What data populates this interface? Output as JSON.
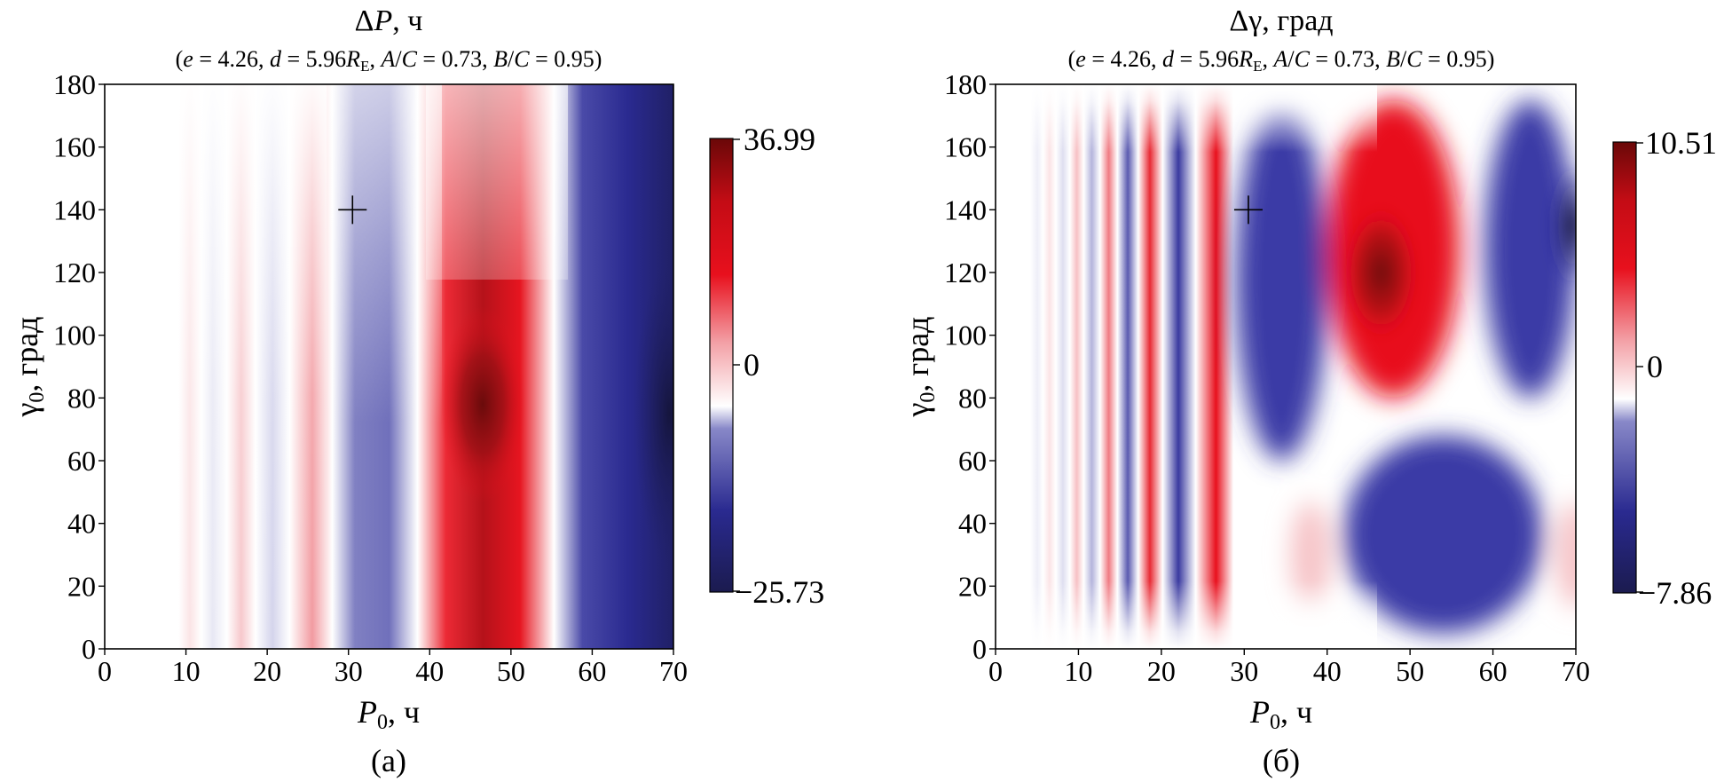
{
  "figure": {
    "panels_caption_a": "(а)",
    "panels_caption_b": "(б)"
  },
  "chart_data": [
    {
      "type": "heatmap",
      "panel": "(а)",
      "title": "ΔP, ч",
      "subtitle": "(e = 4.26, d = 5.96R_E, A/C = 0.73, B/C = 0.95)",
      "xlabel": "P0, ч",
      "ylabel": "γ0, град",
      "xlim": [
        0,
        70
      ],
      "ylim": [
        0,
        180
      ],
      "xticks": [
        0,
        10,
        20,
        30,
        40,
        50,
        60,
        70
      ],
      "yticks": [
        0,
        20,
        40,
        60,
        80,
        100,
        120,
        140,
        160,
        180
      ],
      "colorbar": {
        "min": -25.73,
        "zero": 0,
        "max": 36.99,
        "labels": [
          "36.99",
          "0",
          "−25.73"
        ],
        "colormap": "seismic-like: navy → blue → white → red → dark red"
      },
      "marker": {
        "x": 30.5,
        "y": 140,
        "symbol": "+"
      },
      "features": [
        {
          "kind": "max",
          "x": 46.5,
          "y": 78,
          "value": 36.99,
          "color": "#7a0a0a"
        },
        {
          "kind": "min",
          "x": 69.5,
          "y": 75,
          "value": -25.73,
          "color": "#1b1b4f"
        },
        {
          "kind": "band",
          "sign": "positive",
          "x_range": [
            40.5,
            55.5
          ],
          "y_range": [
            0,
            180
          ],
          "note": "strong red lobe"
        },
        {
          "kind": "band",
          "sign": "negative",
          "x_range": [
            57.5,
            70
          ],
          "y_range": [
            0,
            180
          ]
        },
        {
          "kind": "band",
          "sign": "negative",
          "x_range": [
            29,
            39
          ],
          "y_range": [
            0,
            180
          ]
        }
      ],
      "colors": {
        "pos_max": "#7a0a0a",
        "pos": "#e8101d",
        "zero": "#ffffff",
        "neg": "#3a3aa6",
        "neg_max": "#1b1b4f"
      }
    },
    {
      "type": "heatmap",
      "panel": "(б)",
      "title": "Δγ, град",
      "subtitle": "(e = 4.26, d = 5.96R_E, A/C = 0.73, B/C = 0.95)",
      "xlabel": "P0, ч",
      "ylabel": "γ0, град",
      "xlim": [
        0,
        70
      ],
      "ylim": [
        0,
        180
      ],
      "xticks": [
        0,
        10,
        20,
        30,
        40,
        50,
        60,
        70
      ],
      "yticks": [
        0,
        20,
        40,
        60,
        80,
        100,
        120,
        140,
        160,
        180
      ],
      "colorbar": {
        "min": -7.86,
        "zero": 0,
        "max": 10.51,
        "labels": [
          "10.51",
          "0",
          "−7.86"
        ],
        "colormap": "seismic-like: navy → blue → white → red → dark red"
      },
      "marker": {
        "x": 30.5,
        "y": 140,
        "symbol": "+"
      },
      "features": [
        {
          "kind": "max",
          "x": 46.5,
          "y": 120,
          "value": 10.51,
          "color": "#7a0a0a"
        },
        {
          "kind": "min",
          "x": 69.5,
          "y": 135,
          "value": -7.86,
          "color": "#1b1b4f"
        },
        {
          "kind": "lobe",
          "sign": "positive",
          "x_range": [
            40,
            56
          ],
          "y_range": [
            80,
            175
          ]
        },
        {
          "kind": "lobe",
          "sign": "negative",
          "x_range": [
            42,
            66
          ],
          "y_range": [
            5,
            68
          ]
        },
        {
          "kind": "lobe",
          "sign": "negative",
          "x_range": [
            29,
            40
          ],
          "y_range": [
            60,
            175
          ]
        },
        {
          "kind": "lobe",
          "sign": "negative",
          "x_range": [
            59,
            70
          ],
          "y_range": [
            80,
            175
          ]
        }
      ],
      "colors": {
        "pos_max": "#7a0a0a",
        "pos": "#e8101d",
        "zero": "#ffffff",
        "neg": "#3a3aa6",
        "neg_max": "#1b1b4f"
      }
    }
  ]
}
